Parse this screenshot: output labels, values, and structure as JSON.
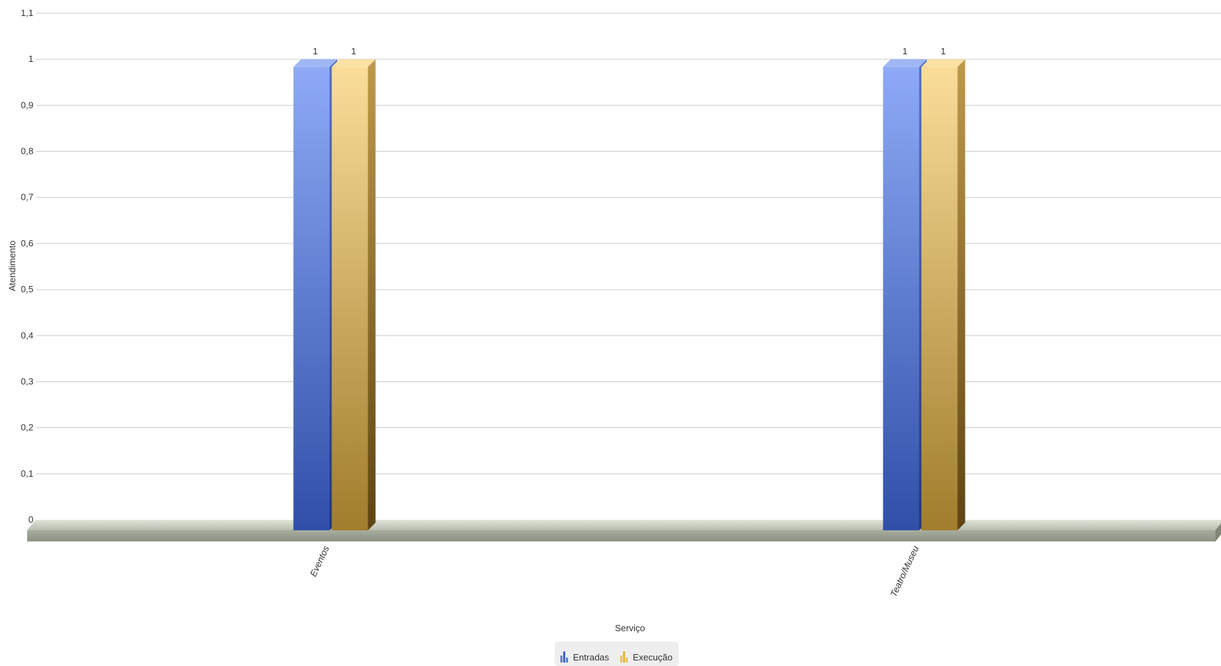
{
  "chart_data": {
    "type": "bar",
    "categories": [
      "Eventos",
      "Teatro/Museu"
    ],
    "series": [
      {
        "name": "Entradas",
        "values": [
          1,
          1
        ]
      },
      {
        "name": "Execução",
        "values": [
          1,
          1
        ]
      }
    ],
    "xlabel": "Serviço",
    "ylabel": "Atendimento",
    "ylim": [
      0,
      1.1
    ],
    "yticks": [
      "0",
      "0,1",
      "0,2",
      "0,3",
      "0,4",
      "0,5",
      "0,6",
      "0,7",
      "0,8",
      "0,9",
      "1",
      "1,1"
    ],
    "data_labels": true,
    "grid": true,
    "legend_position": "bottom-center",
    "colors": {
      "Entradas": "#5b7fd8",
      "Execução": "#d4aa55"
    }
  }
}
